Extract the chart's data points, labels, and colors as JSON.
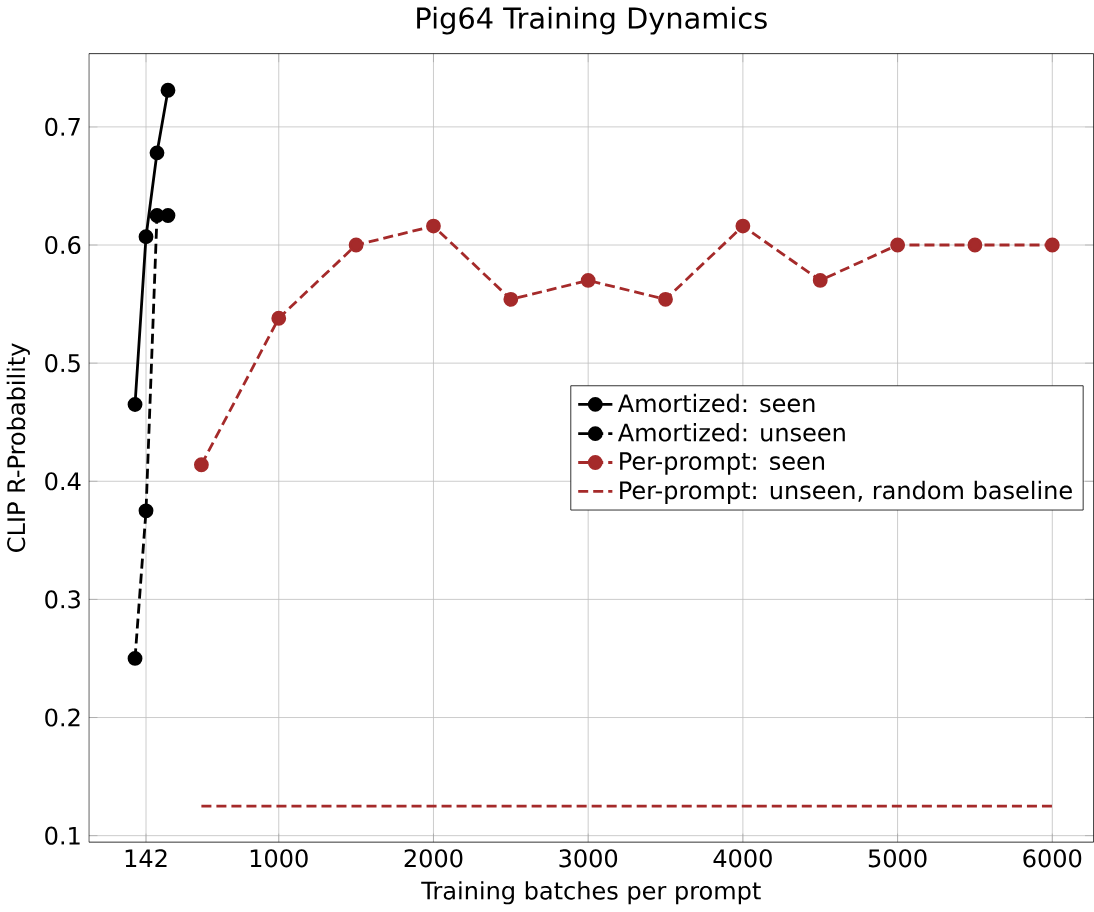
{
  "chart_data": {
    "type": "line",
    "title": "Pig64 Training Dynamics",
    "xlabel": "Training batches per prompt",
    "ylabel": "CLIP R-Probability",
    "xlim": [
      -227,
      6267
    ],
    "ylim": [
      0.0945,
      0.762
    ],
    "xticks": [
      142,
      1000,
      2000,
      3000,
      4000,
      5000,
      6000
    ],
    "yticks": [
      {
        "value": 0.1,
        "label": "0.1"
      },
      {
        "value": 0.2,
        "label": "0.2"
      },
      {
        "value": 0.3,
        "label": "0.3"
      },
      {
        "value": 0.4,
        "label": "0.4"
      },
      {
        "value": 0.5,
        "label": "0.5"
      },
      {
        "value": 0.6,
        "label": "0.6"
      },
      {
        "value": 0.7,
        "label": "0.7"
      }
    ],
    "grid": true,
    "legend": "right",
    "series": [
      {
        "name": "Amortized: seen",
        "color": "#000000",
        "marker": "circle",
        "line_style": "solid",
        "x": [
          71,
          142,
          213,
          284
        ],
        "values": [
          0.465,
          0.607,
          0.678,
          0.731
        ]
      },
      {
        "name": "Amortized: unseen",
        "color": "#000000",
        "marker": "circle",
        "line_style": "dashed",
        "x": [
          71,
          142,
          213,
          284
        ],
        "values": [
          0.25,
          0.375,
          0.625,
          0.625
        ]
      },
      {
        "name": "Per-prompt: seen",
        "color": "#a52a2a",
        "marker": "circle",
        "line_style": "dashed",
        "x": [
          500,
          1000,
          1500,
          2000,
          2500,
          3000,
          3500,
          4000,
          4500,
          5000,
          5500,
          6000
        ],
        "values": [
          0.414,
          0.538,
          0.6,
          0.616,
          0.554,
          0.57,
          0.554,
          0.616,
          0.57,
          0.6,
          0.6,
          0.6
        ]
      },
      {
        "name": "Per-prompt: unseen, random baseline",
        "color": "#a52a2a",
        "marker": "none",
        "line_style": "dashed",
        "x": [
          500,
          6000
        ],
        "values": [
          0.125,
          0.125
        ]
      }
    ]
  }
}
